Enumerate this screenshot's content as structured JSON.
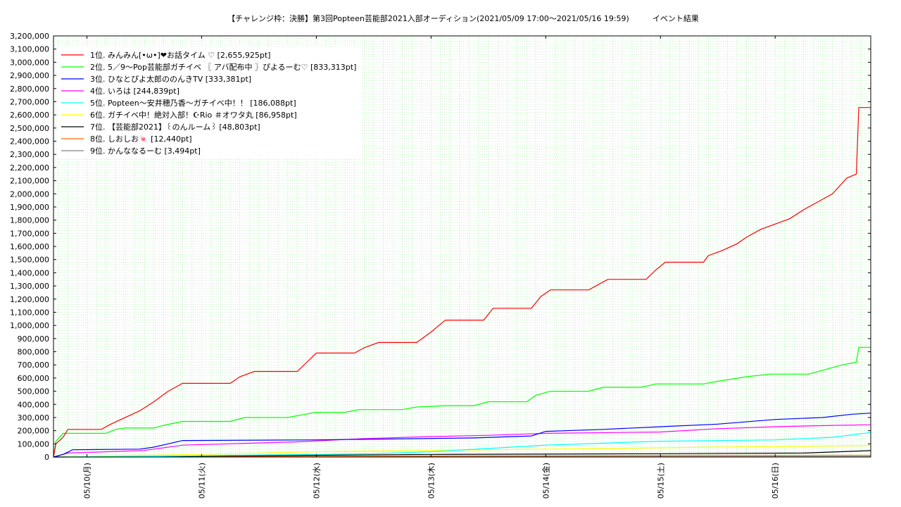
{
  "chart_data": {
    "type": "line",
    "title": "【チャレンジ枠：決勝】第3回Popteen芸能部2021入部オーディション(2021/05/09 17:00〜2021/05/16 19:59)　　　イベント結果",
    "xlabel": "",
    "ylabel": "",
    "ylim": [
      0,
      3200000
    ],
    "yticks": [
      "0",
      "100,000",
      "200,000",
      "300,000",
      "400,000",
      "500,000",
      "600,000",
      "700,000",
      "800,000",
      "900,000",
      "1,000,000",
      "1,100,000",
      "1,200,000",
      "1,300,000",
      "1,400,000",
      "1,500,000",
      "1,600,000",
      "1,700,000",
      "1,800,000",
      "1,900,000",
      "2,000,000",
      "2,100,000",
      "2,200,000",
      "2,300,000",
      "2,400,000",
      "2,500,000",
      "2,600,000",
      "2,700,000",
      "2,800,000",
      "2,900,000",
      "3,000,000",
      "3,100,000",
      "3,200,000"
    ],
    "xlim": [
      "2021-05-09 17:00",
      "2021-05-16 20:00"
    ],
    "xticks": [
      {
        "time": "2021-05-10 00:00",
        "label": "05/10(月)"
      },
      {
        "time": "2021-05-11 00:00",
        "label": "05/11(火)"
      },
      {
        "time": "2021-05-12 00:00",
        "label": "05/12(水)"
      },
      {
        "time": "2021-05-13 00:00",
        "label": "05/13(木)"
      },
      {
        "time": "2021-05-14 00:00",
        "label": "05/14(金)"
      },
      {
        "time": "2021-05-15 00:00",
        "label": "05/15(土)"
      },
      {
        "time": "2021-05-16 00:00",
        "label": "05/16(日)"
      }
    ],
    "grid": true,
    "legend_position": "top-left",
    "series": [
      {
        "name": "1位. みんみん[•ω•]❤お話タイム ♡ [2,655,925pt]",
        "color": "#ff0000",
        "points": [
          [
            "2021-05-09 17:00",
            0
          ],
          [
            "2021-05-09 17:30",
            100000
          ],
          [
            "2021-05-09 19:00",
            150000
          ],
          [
            "2021-05-09 20:00",
            210000
          ],
          [
            "2021-05-10 03:00",
            210000
          ],
          [
            "2021-05-10 05:00",
            250000
          ],
          [
            "2021-05-10 08:00",
            300000
          ],
          [
            "2021-05-10 11:00",
            350000
          ],
          [
            "2021-05-10 14:00",
            420000
          ],
          [
            "2021-05-10 17:00",
            500000
          ],
          [
            "2021-05-10 20:00",
            560000
          ],
          [
            "2021-05-11 06:00",
            560000
          ],
          [
            "2021-05-11 08:00",
            610000
          ],
          [
            "2021-05-11 11:00",
            650000
          ],
          [
            "2021-05-11 20:00",
            650000
          ],
          [
            "2021-05-11 22:00",
            720000
          ],
          [
            "2021-05-12 00:00",
            790000
          ],
          [
            "2021-05-12 08:00",
            790000
          ],
          [
            "2021-05-12 10:00",
            830000
          ],
          [
            "2021-05-12 13:00",
            870000
          ],
          [
            "2021-05-12 21:00",
            870000
          ],
          [
            "2021-05-13 00:00",
            950000
          ],
          [
            "2021-05-13 03:00",
            1040000
          ],
          [
            "2021-05-13 11:00",
            1040000
          ],
          [
            "2021-05-13 13:00",
            1130000
          ],
          [
            "2021-05-13 21:00",
            1130000
          ],
          [
            "2021-05-13 23:00",
            1220000
          ],
          [
            "2021-05-14 01:00",
            1270000
          ],
          [
            "2021-05-14 09:00",
            1270000
          ],
          [
            "2021-05-14 11:00",
            1310000
          ],
          [
            "2021-05-14 13:00",
            1350000
          ],
          [
            "2021-05-14 21:00",
            1350000
          ],
          [
            "2021-05-14 23:00",
            1420000
          ],
          [
            "2021-05-15 01:00",
            1480000
          ],
          [
            "2021-05-15 09:00",
            1480000
          ],
          [
            "2021-05-15 10:00",
            1530000
          ],
          [
            "2021-05-15 13:00",
            1570000
          ],
          [
            "2021-05-15 16:00",
            1620000
          ],
          [
            "2021-05-15 18:00",
            1670000
          ],
          [
            "2021-05-15 21:00",
            1730000
          ],
          [
            "2021-05-16 00:00",
            1770000
          ],
          [
            "2021-05-16 03:00",
            1810000
          ],
          [
            "2021-05-16 06:00",
            1880000
          ],
          [
            "2021-05-16 09:00",
            1940000
          ],
          [
            "2021-05-16 12:00",
            2000000
          ],
          [
            "2021-05-16 15:00",
            2120000
          ],
          [
            "2021-05-16 17:00",
            2150000
          ],
          [
            "2021-05-16 17:30",
            2655925
          ],
          [
            "2021-05-16 20:00",
            2655925
          ]
        ]
      },
      {
        "name": "2位. 5／9〜Pop芸能部ガチイベ 〖 アバ配布中 〗ぴよるーむ♡ [833,313pt]",
        "color": "#00ff00",
        "points": [
          [
            "2021-05-09 17:00",
            0
          ],
          [
            "2021-05-09 17:30",
            120000
          ],
          [
            "2021-05-09 19:00",
            180000
          ],
          [
            "2021-05-10 04:00",
            180000
          ],
          [
            "2021-05-10 06:00",
            210000
          ],
          [
            "2021-05-10 08:00",
            220000
          ],
          [
            "2021-05-10 14:00",
            220000
          ],
          [
            "2021-05-10 16:00",
            240000
          ],
          [
            "2021-05-10 20:00",
            270000
          ],
          [
            "2021-05-11 06:00",
            270000
          ],
          [
            "2021-05-11 09:00",
            300000
          ],
          [
            "2021-05-11 18:00",
            300000
          ],
          [
            "2021-05-11 21:00",
            320000
          ],
          [
            "2021-05-12 00:00",
            340000
          ],
          [
            "2021-05-12 06:00",
            340000
          ],
          [
            "2021-05-12 09:00",
            360000
          ],
          [
            "2021-05-12 18:00",
            360000
          ],
          [
            "2021-05-12 21:00",
            380000
          ],
          [
            "2021-05-13 03:00",
            390000
          ],
          [
            "2021-05-13 09:00",
            390000
          ],
          [
            "2021-05-13 12:00",
            420000
          ],
          [
            "2021-05-13 20:00",
            420000
          ],
          [
            "2021-05-13 22:00",
            470000
          ],
          [
            "2021-05-14 01:00",
            500000
          ],
          [
            "2021-05-14 09:00",
            500000
          ],
          [
            "2021-05-14 12:00",
            530000
          ],
          [
            "2021-05-14 20:00",
            530000
          ],
          [
            "2021-05-14 23:00",
            555000
          ],
          [
            "2021-05-15 09:00",
            555000
          ],
          [
            "2021-05-15 12:00",
            575000
          ],
          [
            "2021-05-15 18:00",
            610000
          ],
          [
            "2021-05-15 23:00",
            630000
          ],
          [
            "2021-05-16 07:00",
            630000
          ],
          [
            "2021-05-16 10:00",
            660000
          ],
          [
            "2021-05-16 14:00",
            700000
          ],
          [
            "2021-05-16 17:00",
            720000
          ],
          [
            "2021-05-16 17:30",
            833313
          ],
          [
            "2021-05-16 20:00",
            833313
          ]
        ]
      },
      {
        "name": "3位. ひなとぴよ太郎ののんきTV [333,381pt]",
        "color": "#0000ff",
        "points": [
          [
            "2021-05-09 17:00",
            0
          ],
          [
            "2021-05-09 19:00",
            20000
          ],
          [
            "2021-05-09 21:00",
            55000
          ],
          [
            "2021-05-10 11:00",
            60000
          ],
          [
            "2021-05-10 14:00",
            75000
          ],
          [
            "2021-05-10 17:00",
            100000
          ],
          [
            "2021-05-10 20:00",
            125000
          ],
          [
            "2021-05-12 00:00",
            130000
          ],
          [
            "2021-05-13 09:00",
            145000
          ],
          [
            "2021-05-13 21:00",
            160000
          ],
          [
            "2021-05-14 00:00",
            195000
          ],
          [
            "2021-05-14 12:00",
            210000
          ],
          [
            "2021-05-15 00:00",
            230000
          ],
          [
            "2021-05-15 12:00",
            250000
          ],
          [
            "2021-05-16 00:00",
            285000
          ],
          [
            "2021-05-16 10:00",
            300000
          ],
          [
            "2021-05-16 16:00",
            325000
          ],
          [
            "2021-05-16 20:00",
            333381
          ]
        ]
      },
      {
        "name": "4位. いろは [244,839pt]",
        "color": "#ff00ff",
        "points": [
          [
            "2021-05-09 17:00",
            0
          ],
          [
            "2021-05-09 20:00",
            30000
          ],
          [
            "2021-05-10 12:00",
            50000
          ],
          [
            "2021-05-10 20:00",
            90000
          ],
          [
            "2021-05-11 20:00",
            115000
          ],
          [
            "2021-05-12 10:00",
            140000
          ],
          [
            "2021-05-13 00:00",
            155000
          ],
          [
            "2021-05-13 12:00",
            165000
          ],
          [
            "2021-05-14 00:00",
            180000
          ],
          [
            "2021-05-15 00:00",
            190000
          ],
          [
            "2021-05-15 12:00",
            215000
          ],
          [
            "2021-05-16 00:00",
            230000
          ],
          [
            "2021-05-16 12:00",
            240000
          ],
          [
            "2021-05-16 20:00",
            244839
          ]
        ]
      },
      {
        "name": "5位. Popteen〜安井穂乃香〜ガチイベ中！！ [186,088pt]",
        "color": "#00ffff",
        "points": [
          [
            "2021-05-09 17:00",
            0
          ],
          [
            "2021-05-10 12:00",
            5000
          ],
          [
            "2021-05-11 12:00",
            15000
          ],
          [
            "2021-05-12 12:00",
            25000
          ],
          [
            "2021-05-13 00:00",
            40000
          ],
          [
            "2021-05-13 12:00",
            65000
          ],
          [
            "2021-05-14 00:00",
            90000
          ],
          [
            "2021-05-14 12:00",
            105000
          ],
          [
            "2021-05-15 00:00",
            120000
          ],
          [
            "2021-05-16 00:00",
            130000
          ],
          [
            "2021-05-16 12:00",
            150000
          ],
          [
            "2021-05-16 20:00",
            186088
          ]
        ]
      },
      {
        "name": "6位. ガチイベ中！絶対入部！☪Rio ＃オワタ丸 [86,958pt]",
        "color": "#ffff00",
        "points": [
          [
            "2021-05-09 17:00",
            0
          ],
          [
            "2021-05-11 00:00",
            20000
          ],
          [
            "2021-05-12 00:00",
            40000
          ],
          [
            "2021-05-13 00:00",
            50000
          ],
          [
            "2021-05-14 00:00",
            60000
          ],
          [
            "2021-05-15 00:00",
            70000
          ],
          [
            "2021-05-16 00:00",
            80000
          ],
          [
            "2021-05-16 20:00",
            86958
          ]
        ]
      },
      {
        "name": "7位. 【芸能部2021】꒰のんルーム꒱ [48,803pt]",
        "color": "#000000",
        "points": [
          [
            "2021-05-09 17:00",
            0
          ],
          [
            "2021-05-10 17:00",
            5000
          ],
          [
            "2021-05-13 00:00",
            20000
          ],
          [
            "2021-05-15 00:00",
            25000
          ],
          [
            "2021-05-16 06:00",
            30000
          ],
          [
            "2021-05-16 20:00",
            48803
          ]
        ]
      },
      {
        "name": "8位. しおしお🍬 [12,440pt]",
        "color": "#ff6600",
        "points": [
          [
            "2021-05-09 17:00",
            0
          ],
          [
            "2021-05-11 00:00",
            5000
          ],
          [
            "2021-05-13 00:00",
            8000
          ],
          [
            "2021-05-16 20:00",
            12440
          ]
        ]
      },
      {
        "name": "9位. かんななるーむ [3,494pt]",
        "color": "#808080",
        "points": [
          [
            "2021-05-09 17:00",
            0
          ],
          [
            "2021-05-16 20:00",
            3494
          ]
        ]
      }
    ]
  }
}
